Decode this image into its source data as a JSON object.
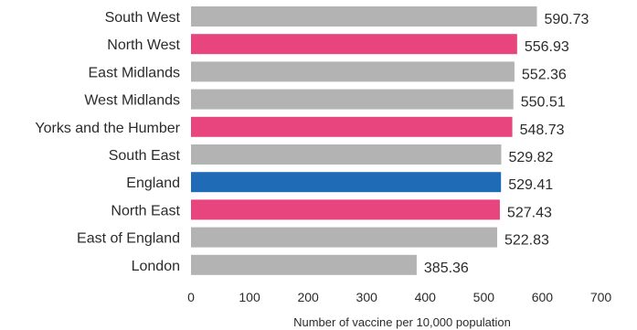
{
  "chart_data": {
    "type": "bar",
    "orientation": "horizontal",
    "categories": [
      "South West",
      "North West",
      "East Midlands",
      "West Midlands",
      "Yorks and the Humber",
      "South East",
      "England",
      "North East",
      "East of England",
      "London"
    ],
    "values": [
      590.73,
      556.93,
      552.36,
      550.51,
      548.73,
      529.82,
      529.41,
      527.43,
      522.83,
      385.36
    ],
    "value_labels": [
      "590.73",
      "556.93",
      "552.36",
      "550.51",
      "548.73",
      "529.82",
      "529.41",
      "527.43",
      "522.83",
      "385.36"
    ],
    "bar_colors": [
      "#b3b3b3",
      "#e8457e",
      "#b3b3b3",
      "#b3b3b3",
      "#e8457e",
      "#b3b3b3",
      "#1f6bb5",
      "#e8457e",
      "#b3b3b3",
      "#b3b3b3"
    ],
    "xlim": [
      0,
      700
    ],
    "x_ticks": [
      0,
      100,
      200,
      300,
      400,
      500,
      600,
      700
    ],
    "tick_labels": [
      "0",
      "100",
      "200",
      "300",
      "400",
      "500",
      "600",
      "700"
    ],
    "xlabel": "Number of vaccine per 10,000 population",
    "ylabel": "",
    "title": "",
    "grid": false,
    "legend": "none"
  }
}
